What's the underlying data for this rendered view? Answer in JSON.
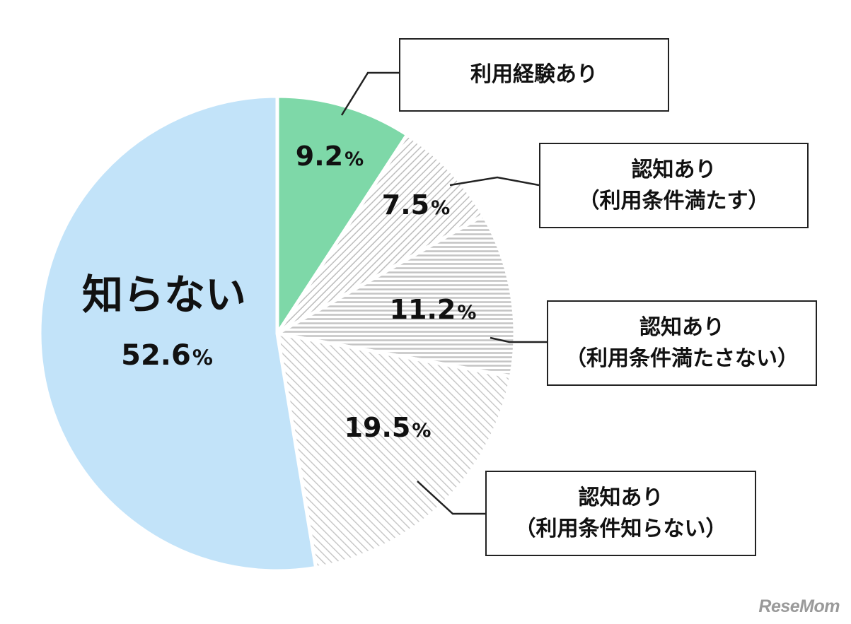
{
  "chart_data": {
    "type": "pie",
    "slices": [
      {
        "label": "利用経験あり",
        "value": 9.2,
        "color": "#7ed8a8",
        "pattern": "solid"
      },
      {
        "label": "認知あり（利用条件満たす）",
        "value": 7.5,
        "color": "#d9d9d9",
        "pattern": "diag-right"
      },
      {
        "label": "認知あり（利用条件満たさない）",
        "value": 11.2,
        "color": "#d9d9d9",
        "pattern": "horizontal"
      },
      {
        "label": "認知あり（利用条件知らない）",
        "value": 19.5,
        "color": "#d9d9d9",
        "pattern": "diag-left"
      },
      {
        "label": "知らない",
        "value": 52.6,
        "color": "#c2e3f9",
        "pattern": "solid"
      }
    ],
    "value_labels": [
      "9.2",
      "7.5",
      "11.2",
      "19.5",
      "52.6"
    ],
    "percent_sign": "%",
    "inside_label": "知らない",
    "start": "12 o'clock, clockwise"
  },
  "callouts": [
    {
      "line1": "利用経験あり",
      "line2": ""
    },
    {
      "line1": "認知あり",
      "line2": "（利用条件満たす）"
    },
    {
      "line1": "認知あり",
      "line2": "（利用条件満たさない）"
    },
    {
      "line1": "認知あり",
      "line2": "（利用条件知らない）"
    }
  ],
  "watermark": "ReseMom"
}
